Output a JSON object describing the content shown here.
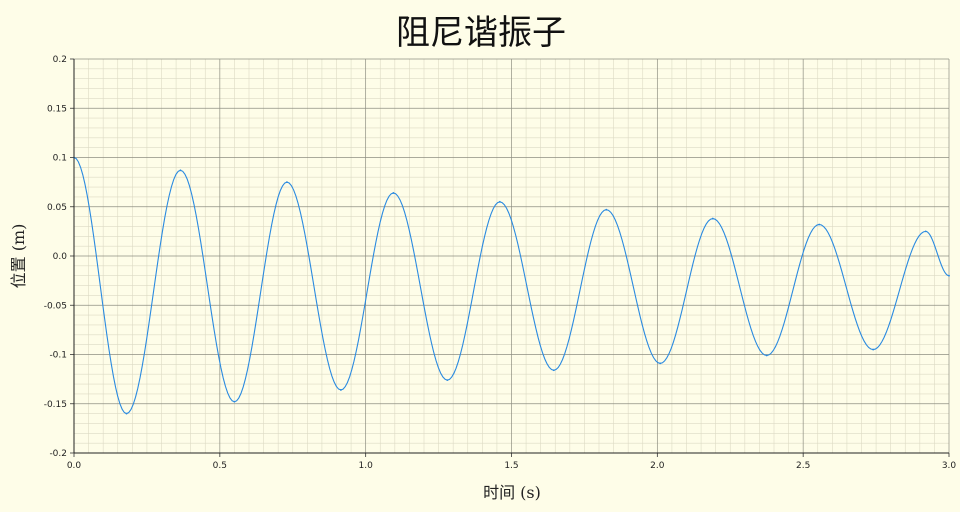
{
  "chart_data": {
    "type": "line",
    "title": "阻尼谐振子",
    "xlabel": "时间 (s)",
    "ylabel": "位置 (m)",
    "xlim": [
      0,
      3.0
    ],
    "ylim": [
      -0.2,
      0.2
    ],
    "x_ticks": [
      "0.0",
      "0.5",
      "1.0",
      "1.5",
      "2.0",
      "2.5",
      "3.0"
    ],
    "y_ticks": [
      "0.2",
      "0.15",
      "0.1",
      "0.05",
      "0.0",
      "-0.05",
      "-0.1",
      "-0.15",
      "-0.2"
    ],
    "grid": true,
    "series": [
      {
        "color": "#2a8ae0",
        "x": [
          0.0,
          0.18,
          0.365,
          0.55,
          0.73,
          0.915,
          1.095,
          1.28,
          1.46,
          1.645,
          1.825,
          2.01,
          2.19,
          2.375,
          2.555,
          2.74,
          2.92,
          3.0
        ],
        "y": [
          0.1,
          -0.16,
          0.087,
          -0.148,
          0.075,
          -0.136,
          0.064,
          -0.126,
          0.055,
          -0.116,
          0.047,
          -0.109,
          0.038,
          -0.101,
          0.032,
          -0.095,
          0.025,
          -0.02
        ]
      }
    ]
  },
  "colors": {
    "background": "#fefde8",
    "major_grid": "#8e8e82",
    "minor_grid": "#dcdac4",
    "line": "#2a8ae0"
  }
}
